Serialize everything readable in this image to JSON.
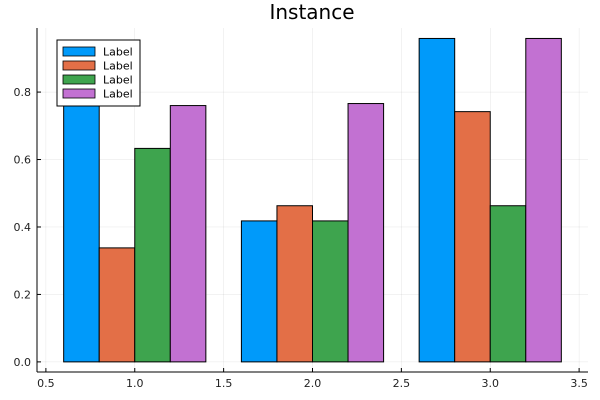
{
  "chart_data": {
    "type": "bar",
    "title": "Instance",
    "xlabel": "",
    "ylabel": "",
    "x_groups": [
      1.0,
      2.0,
      3.0
    ],
    "series": [
      {
        "name": "Label",
        "color": "#009AFA",
        "values": [
          0.94,
          0.418,
          0.959
        ]
      },
      {
        "name": "Label",
        "color": "#E36F47",
        "values": [
          0.338,
          0.463,
          0.742
        ]
      },
      {
        "name": "Label",
        "color": "#3EA44E",
        "values": [
          0.633,
          0.418,
          0.463
        ]
      },
      {
        "name": "Label",
        "color": "#C271D2",
        "values": [
          0.76,
          0.766,
          0.959
        ]
      }
    ],
    "xlim": [
      0.45,
      3.55
    ],
    "ylim": [
      -0.03,
      0.99
    ],
    "xticks": [
      {
        "value": 0.5,
        "label": "0.5"
      },
      {
        "value": 1.0,
        "label": "1.0"
      },
      {
        "value": 1.5,
        "label": "1.5"
      },
      {
        "value": 2.0,
        "label": "2.0"
      },
      {
        "value": 2.5,
        "label": "2.5"
      },
      {
        "value": 3.0,
        "label": "3.0"
      },
      {
        "value": 3.5,
        "label": "3.5"
      }
    ],
    "yticks": [
      {
        "value": 0.0,
        "label": "0.0"
      },
      {
        "value": 0.2,
        "label": "0.2"
      },
      {
        "value": 0.4,
        "label": "0.4"
      },
      {
        "value": 0.6,
        "label": "0.6"
      },
      {
        "value": 0.8,
        "label": "0.8"
      }
    ],
    "grid": true,
    "legend_position": "top-left"
  }
}
